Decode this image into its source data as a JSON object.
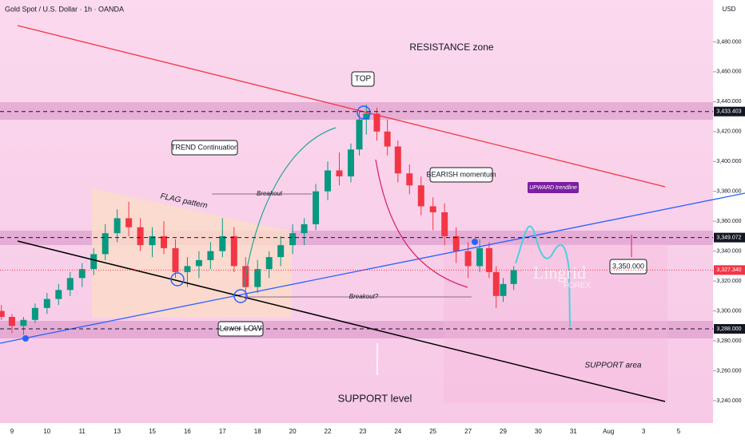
{
  "chart_data": {
    "type": "candlestick",
    "title": "Gold Spot / U.S. Dollar · 1h · OANDA",
    "currency": "USD",
    "xticks": [
      "9",
      "10",
      "11",
      "13",
      "15",
      "16",
      "17",
      "18",
      "20",
      "22",
      "23",
      "24",
      "25",
      "27",
      "29",
      "30",
      "31",
      "Aug",
      "3",
      "5"
    ],
    "xlim": [
      -0.34,
      19.98
    ],
    "ylim": [
      3225,
      3508
    ],
    "yticks": [
      {
        "value": 3240,
        "label": "3,240.000"
      },
      {
        "value": 3260,
        "label": "3,260.000"
      },
      {
        "value": 3280,
        "label": "3,280.000"
      },
      {
        "value": 3300,
        "label": "3,300.000"
      },
      {
        "value": 3320,
        "label": "3,320.000"
      },
      {
        "value": 3340,
        "label": "3,340.000"
      },
      {
        "value": 3360,
        "label": "3,360.000"
      },
      {
        "value": 3380,
        "label": "3,380.000"
      },
      {
        "value": 3400,
        "label": "3,400.000"
      },
      {
        "value": 3420,
        "label": "3,420.000"
      },
      {
        "value": 3440,
        "label": "3,440.000"
      },
      {
        "value": 3460,
        "label": "3,460.000"
      },
      {
        "value": 3480,
        "label": "3,480.000"
      }
    ],
    "up_color": "#089981",
    "down_color": "#f23645",
    "candles": {
      "x": [
        -0.3,
        0,
        0.33,
        0.66,
        1,
        1.33,
        1.66,
        2,
        2.33,
        2.66,
        3,
        3.33,
        3.66,
        4,
        4.33,
        4.66,
        5,
        5.33,
        5.66,
        6,
        6.33,
        6.66,
        7,
        7.33,
        7.66,
        8,
        8.33,
        8.66,
        9,
        9.33,
        9.66,
        9.9,
        10.1,
        10.4,
        10.7,
        11,
        11.33,
        11.66,
        12,
        12.33,
        12.66,
        13,
        13.33,
        13.6,
        13.8,
        14,
        14.3
      ],
      "open": [
        3300,
        3296,
        3290,
        3294,
        3302,
        3308,
        3314,
        3322,
        3328,
        3338,
        3352,
        3362,
        3356,
        3344,
        3350,
        3342,
        3326,
        3330,
        3334,
        3340,
        3350,
        3330,
        3316,
        3328,
        3336,
        3344,
        3352,
        3358,
        3380,
        3394,
        3390,
        3408,
        3428,
        3432,
        3420,
        3410,
        3392,
        3384,
        3370,
        3366,
        3350,
        3340,
        3330,
        3342,
        3326,
        3310,
        3318
      ],
      "high": [
        3304,
        3298,
        3296,
        3305,
        3312,
        3318,
        3326,
        3332,
        3342,
        3358,
        3368,
        3373,
        3362,
        3356,
        3360,
        3348,
        3336,
        3340,
        3346,
        3362,
        3356,
        3336,
        3334,
        3340,
        3350,
        3358,
        3362,
        3385,
        3400,
        3406,
        3412,
        3434,
        3438,
        3436,
        3428,
        3414,
        3398,
        3390,
        3376,
        3372,
        3356,
        3346,
        3348,
        3346,
        3330,
        3322,
        3330
      ],
      "low": [
        3294,
        3285,
        3284,
        3292,
        3298,
        3304,
        3310,
        3316,
        3324,
        3334,
        3346,
        3350,
        3340,
        3336,
        3338,
        3322,
        3316,
        3322,
        3328,
        3336,
        3326,
        3308,
        3312,
        3322,
        3330,
        3338,
        3344,
        3354,
        3374,
        3384,
        3386,
        3404,
        3418,
        3414,
        3404,
        3386,
        3378,
        3364,
        3354,
        3344,
        3332,
        3322,
        3326,
        3322,
        3302,
        3306,
        3314
      ],
      "close": [
        3296,
        3290,
        3294,
        3302,
        3308,
        3314,
        3322,
        3328,
        3338,
        3352,
        3362,
        3356,
        3344,
        3350,
        3342,
        3326,
        3330,
        3334,
        3340,
        3350,
        3330,
        3316,
        3328,
        3336,
        3344,
        3352,
        3358,
        3380,
        3394,
        3390,
        3408,
        3428,
        3432,
        3420,
        3410,
        3392,
        3384,
        3370,
        3366,
        3350,
        3340,
        3330,
        3342,
        3326,
        3310,
        3318,
        3327.34
      ]
    },
    "price_labels": [
      {
        "value": 3433.403,
        "label": "3,433.403",
        "color": "#131722"
      },
      {
        "value": 3349.072,
        "label": "3,349.072",
        "color": "#131722"
      },
      {
        "value": 3327.34,
        "label": "3,327.340",
        "color": "#f23645"
      },
      {
        "value": 3288,
        "label": "3,288.000",
        "color": "#131722"
      }
    ],
    "annotations": [
      "RESISTANCE zone",
      "TOP",
      "TREND Continuation",
      "FLAG pattern",
      "Breakout",
      "BEARISH momentum",
      "UPWARD trendline",
      "3,350.000",
      "Breakout?",
      "Lower LOW",
      "SUPPORT area",
      "SUPPORT level",
      "Lingrid",
      "FOREX"
    ]
  }
}
